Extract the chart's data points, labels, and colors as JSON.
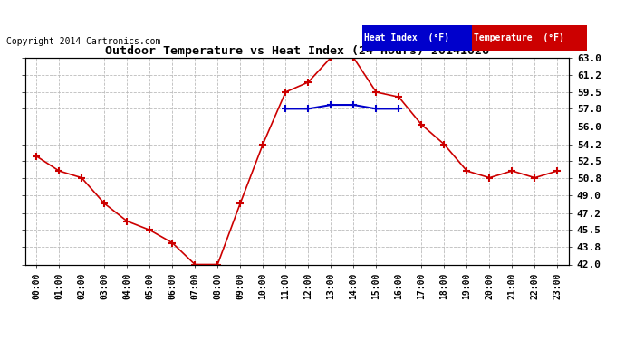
{
  "title": "Outdoor Temperature vs Heat Index (24 Hours) 20141026",
  "copyright": "Copyright 2014 Cartronics.com",
  "background_color": "#ffffff",
  "grid_color": "#bbbbbb",
  "x_labels": [
    "00:00",
    "01:00",
    "02:00",
    "03:00",
    "04:00",
    "05:00",
    "06:00",
    "07:00",
    "08:00",
    "09:00",
    "10:00",
    "11:00",
    "12:00",
    "13:00",
    "14:00",
    "15:00",
    "16:00",
    "17:00",
    "18:00",
    "19:00",
    "20:00",
    "21:00",
    "22:00",
    "23:00"
  ],
  "temperature_data": {
    "hours": [
      0,
      1,
      2,
      3,
      4,
      5,
      6,
      7,
      8,
      9,
      10,
      11,
      12,
      13,
      14,
      15,
      16,
      17,
      18,
      19,
      20,
      21,
      22,
      23
    ],
    "values": [
      53.0,
      51.5,
      50.8,
      48.2,
      46.4,
      45.5,
      44.2,
      42.0,
      42.0,
      48.2,
      54.2,
      59.5,
      60.5,
      63.0,
      63.0,
      59.5,
      59.0,
      56.2,
      54.2,
      51.5,
      50.8,
      51.5,
      50.8,
      51.5
    ],
    "color": "#cc0000",
    "marker": "+",
    "linewidth": 1.2
  },
  "heat_index_data": {
    "hours": [
      11,
      12,
      13,
      14,
      15,
      16
    ],
    "values": [
      57.8,
      57.8,
      58.2,
      58.2,
      57.8,
      57.8
    ],
    "color": "#0000cc",
    "marker": "+",
    "linewidth": 1.5
  },
  "ylim": [
    42.0,
    63.0
  ],
  "yticks": [
    42.0,
    43.8,
    45.5,
    47.2,
    49.0,
    50.8,
    52.5,
    54.2,
    56.0,
    57.8,
    59.5,
    61.2,
    63.0
  ],
  "legend_heat_index_label": "Heat Index  (°F)",
  "legend_temperature_label": "Temperature  (°F)",
  "legend_heat_index_bg": "#0000cc",
  "legend_temperature_bg": "#cc0000",
  "legend_text_color": "#ffffff"
}
